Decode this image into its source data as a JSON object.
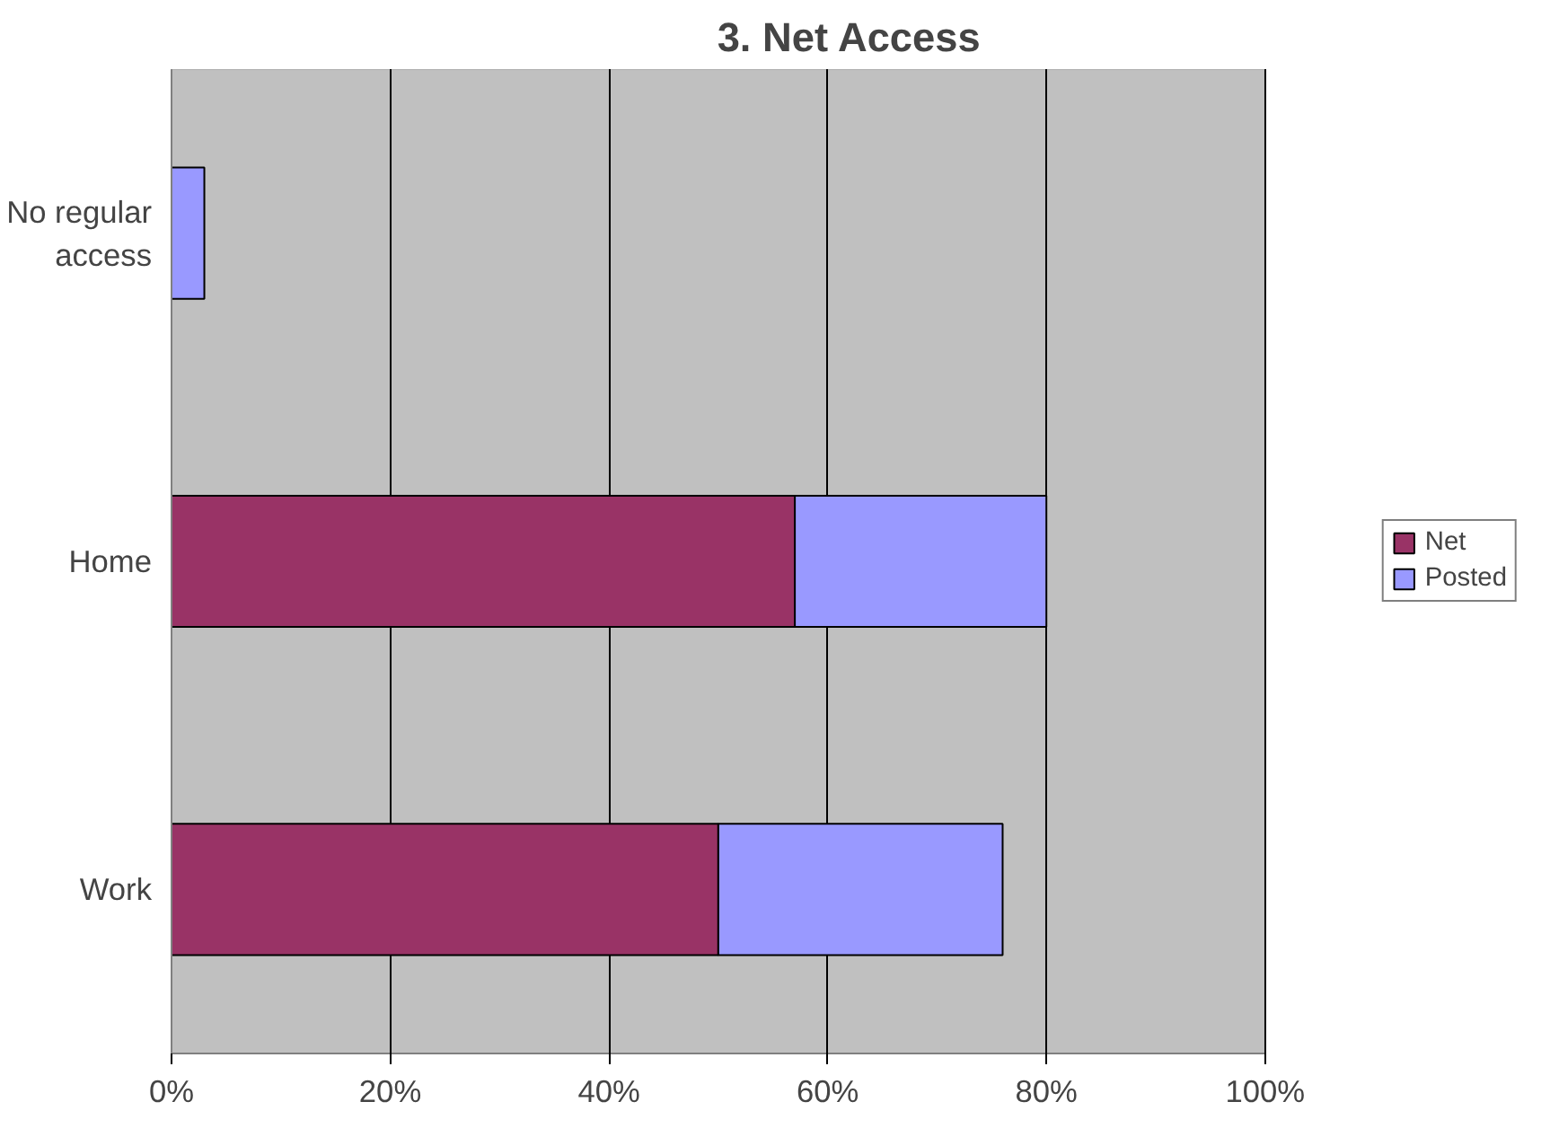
{
  "chart_data": {
    "type": "bar",
    "orientation": "horizontal",
    "stacked": true,
    "title": "3. Net Access",
    "categories": [
      "No regular access",
      "Home",
      "Work"
    ],
    "series": [
      {
        "name": "Net",
        "color": "#993366",
        "values": [
          0,
          57,
          50
        ]
      },
      {
        "name": "Posted",
        "color": "#9999ff",
        "values": [
          3,
          23,
          26
        ]
      }
    ],
    "xlim": [
      0,
      100
    ],
    "xticks": [
      {
        "value": 0,
        "label": "0%"
      },
      {
        "value": 20,
        "label": "20%"
      },
      {
        "value": 40,
        "label": "40%"
      },
      {
        "value": 60,
        "label": "60%"
      },
      {
        "value": 80,
        "label": "80%"
      },
      {
        "value": 100,
        "label": "100%"
      }
    ],
    "grid": "x",
    "legend": "right"
  }
}
